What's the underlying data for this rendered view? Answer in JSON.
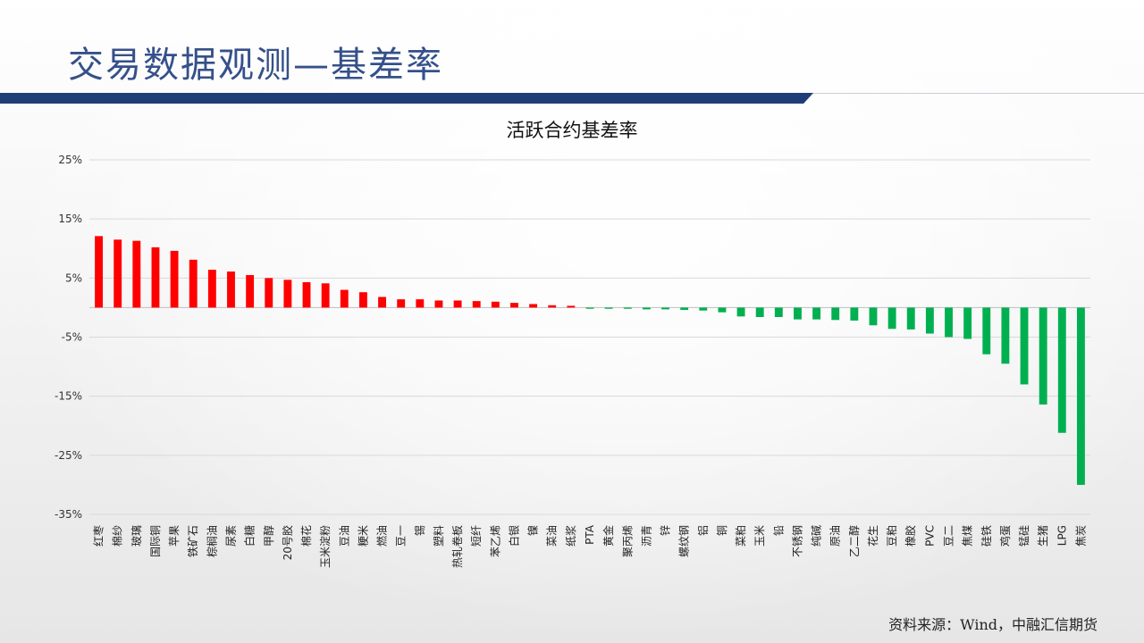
{
  "page": {
    "title": "交易数据观测—基差率",
    "source": "资料来源：Wind，中融汇信期货"
  },
  "colors": {
    "positive": "#ff0000",
    "negative": "#00b050",
    "header": "#1f3e78",
    "title": "#35508a"
  },
  "chart_data": {
    "type": "bar",
    "title": "活跃合约基差率",
    "xlabel": "",
    "ylabel": "",
    "ylim": [
      -35,
      25
    ],
    "yticks": [
      25,
      15,
      5,
      -5,
      -15,
      -25,
      -35
    ],
    "ytick_labels": [
      "25%",
      "15%",
      "5%",
      "-5%",
      "-15%",
      "-25%",
      "-35%"
    ],
    "grid": true,
    "categories": [
      "红枣",
      "棉纱",
      "玻璃",
      "国际铜",
      "苹果",
      "铁矿石",
      "棕榈油",
      "尿素",
      "白糖",
      "甲醇",
      "20号胶",
      "棉花",
      "玉米淀粉",
      "豆油",
      "粳米",
      "燃油",
      "豆一",
      "锡",
      "塑料",
      "热轧卷板",
      "短纤",
      "苯乙烯",
      "白银",
      "镍",
      "菜油",
      "纸浆",
      "PTA",
      "黄金",
      "聚丙烯",
      "沥青",
      "锌",
      "螺纹钢",
      "铝",
      "铜",
      "菜粕",
      "玉米",
      "铅",
      "不锈钢",
      "纯碱",
      "原油",
      "乙二醇",
      "花生",
      "豆粕",
      "橡胶",
      "PVC",
      "豆二",
      "焦煤",
      "硅铁",
      "鸡蛋",
      "锰硅",
      "生猪",
      "LPG",
      "焦炭"
    ],
    "values": [
      12.1,
      11.5,
      11.3,
      10.2,
      9.6,
      8.1,
      6.4,
      6.1,
      5.5,
      5.0,
      4.7,
      4.3,
      4.1,
      3.0,
      2.6,
      1.8,
      1.4,
      1.4,
      1.2,
      1.2,
      1.1,
      1.0,
      0.8,
      0.6,
      0.4,
      0.3,
      -0.2,
      -0.2,
      -0.2,
      -0.3,
      -0.3,
      -0.4,
      -0.5,
      -0.8,
      -1.5,
      -1.6,
      -1.6,
      -2.0,
      -2.0,
      -2.1,
      -2.2,
      -3.0,
      -3.6,
      -3.7,
      -4.4,
      -5.0,
      -5.3,
      -7.9,
      -9.5,
      -13.0,
      -16.4,
      -21.2,
      -30.0
    ]
  }
}
